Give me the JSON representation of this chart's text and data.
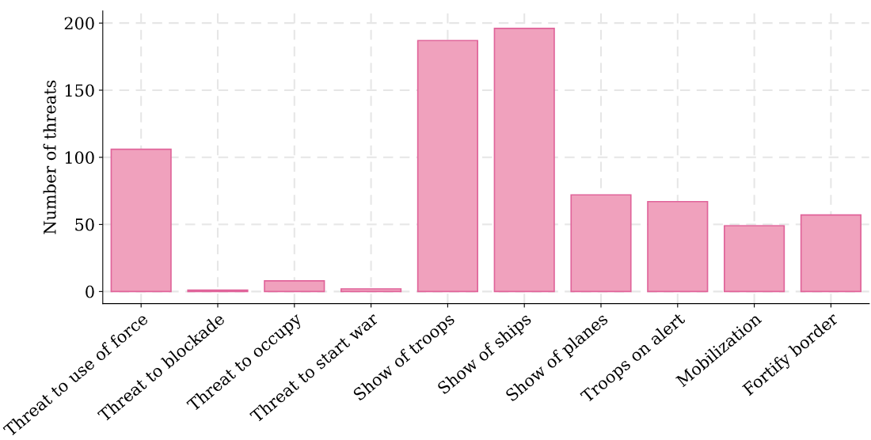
{
  "chart_data": {
    "type": "bar",
    "ylabel": "Number of threats",
    "categories": [
      "Threat to use of force",
      "Threat to blockade",
      "Threat to occupy",
      "Threat to start war",
      "Show of troops",
      "Show of ships",
      "Show of planes",
      "Troops on alert",
      "Mobilization",
      "Fortify border"
    ],
    "values": [
      106,
      1,
      8,
      2,
      187,
      196,
      72,
      67,
      49,
      57
    ],
    "color": "#f0a1bd",
    "ylim": [
      -9,
      209
    ],
    "yticks": [
      0,
      50,
      100,
      150,
      200
    ],
    "grid": true
  }
}
